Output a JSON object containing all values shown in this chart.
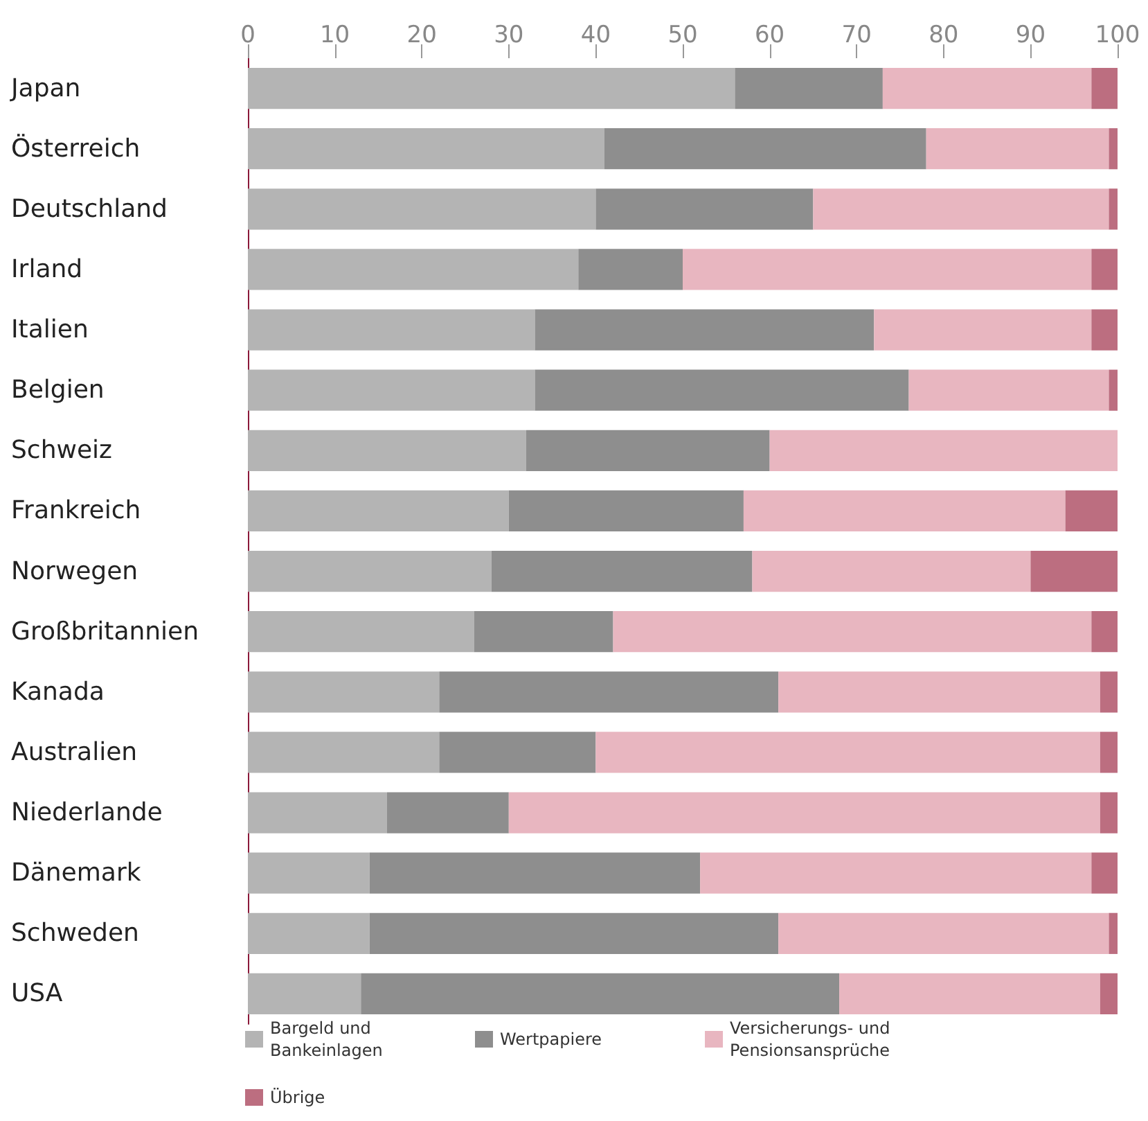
{
  "chart_data": {
    "type": "bar",
    "orientation": "horizontal",
    "stacked": true,
    "categories": [
      "Japan",
      "Österreich",
      "Deutschland",
      "Irland",
      "Italien",
      "Belgien",
      "Schweiz",
      "Frankreich",
      "Norwegen",
      "Großbritannien",
      "Kanada",
      "Australien",
      "Niederlande",
      "Dänemark",
      "Schweden",
      "USA"
    ],
    "series": [
      {
        "name": "Bargeld und Bankeinlagen",
        "color": "#b4b4b4",
        "values": [
          56,
          41,
          40,
          38,
          33,
          33,
          32,
          30,
          28,
          26,
          22,
          22,
          16,
          14,
          14,
          13
        ]
      },
      {
        "name": "Wertpapiere",
        "color": "#8e8e8e",
        "values": [
          17,
          37,
          25,
          12,
          39,
          43,
          28,
          27,
          30,
          16,
          39,
          18,
          14,
          38,
          47,
          55
        ]
      },
      {
        "name": "Versicherungs- und Pensionsansprüche",
        "color": "#e8b6c0",
        "values": [
          24,
          21,
          34,
          47,
          25,
          23,
          40,
          37,
          32,
          55,
          37,
          58,
          68,
          45,
          38,
          30
        ]
      },
      {
        "name": "Übrige",
        "color": "#bc6e80",
        "values": [
          3,
          1,
          1,
          3,
          3,
          1,
          0,
          6,
          10,
          3,
          2,
          2,
          2,
          3,
          1,
          2
        ]
      }
    ],
    "xlim": [
      0,
      100
    ],
    "xticks": [
      0,
      10,
      20,
      30,
      40,
      50,
      60,
      70,
      80,
      90,
      100
    ],
    "grid": false,
    "legend": "bottom"
  }
}
